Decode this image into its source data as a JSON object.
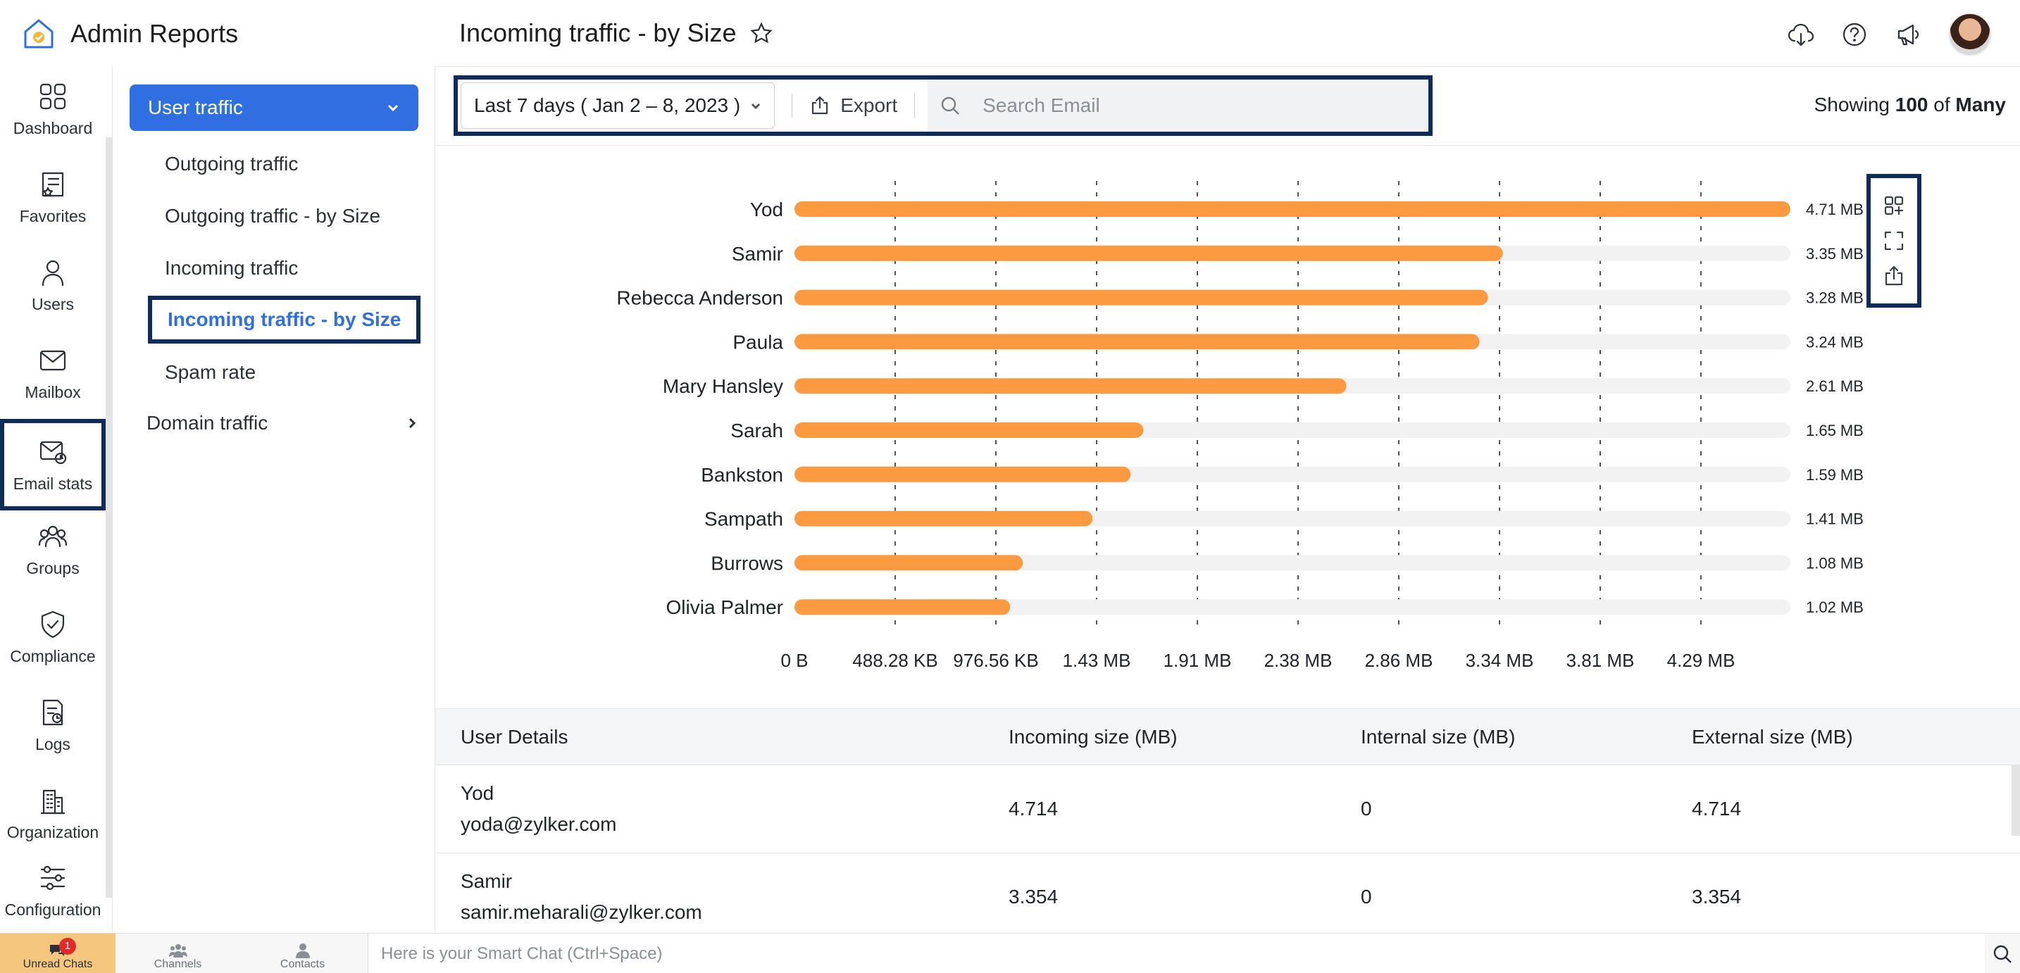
{
  "app": {
    "title": "Admin Reports",
    "logo_icon": "admin-reports-house-icon"
  },
  "rail": {
    "items": [
      {
        "label": "Dashboard",
        "icon": "grid-icon"
      },
      {
        "label": "Favorites",
        "icon": "favorites-list-icon"
      },
      {
        "label": "Users",
        "icon": "user-icon"
      },
      {
        "label": "Mailbox",
        "icon": "envelope-icon"
      },
      {
        "label": "Email stats",
        "icon": "email-stats-icon",
        "active": true
      },
      {
        "label": "Groups",
        "icon": "groups-icon"
      },
      {
        "label": "Compliance",
        "icon": "shield-check-icon"
      },
      {
        "label": "Logs",
        "icon": "logs-icon"
      },
      {
        "label": "Organization",
        "icon": "building-icon"
      },
      {
        "label": "Configuration",
        "icon": "sliders-icon"
      }
    ]
  },
  "subnav": {
    "group_label": "User traffic",
    "items": [
      {
        "label": "Outgoing traffic"
      },
      {
        "label": "Outgoing traffic - by Size"
      },
      {
        "label": "Incoming traffic"
      },
      {
        "label": "Incoming traffic - by Size",
        "active": true
      },
      {
        "label": "Spam rate"
      }
    ],
    "domain_traffic": "Domain traffic"
  },
  "header": {
    "title": "Incoming traffic - by Size",
    "icons": [
      "download-cloud-icon",
      "help-icon",
      "announcement-icon",
      "avatar"
    ]
  },
  "toolbar": {
    "date_range": "Last 7 days ( Jan 2 – 8, 2023 )",
    "export_label": "Export",
    "search_placeholder": "Search Email",
    "showing_prefix": "Showing",
    "showing_count": "100",
    "showing_mid": "of",
    "showing_total": "Many"
  },
  "chart_data": {
    "type": "bar",
    "orientation": "horizontal",
    "categories": [
      "Yod",
      "Samir",
      "Rebecca Anderson",
      "Paula",
      "Mary Hansley",
      "Sarah",
      "Bankston",
      "Sampath",
      "Burrows",
      "Olivia Palmer"
    ],
    "values": [
      4.71,
      3.35,
      3.28,
      3.24,
      2.61,
      1.65,
      1.59,
      1.41,
      1.08,
      1.02
    ],
    "value_labels": [
      "4.71 MB",
      "3.35 MB",
      "3.28 MB",
      "3.24 MB",
      "2.61 MB",
      "1.65 MB",
      "1.59 MB",
      "1.41 MB",
      "1.08 MB",
      "1.02 MB"
    ],
    "xticks": [
      "0 B",
      "488.28 KB",
      "976.56 KB",
      "1.43 MB",
      "1.91 MB",
      "2.38 MB",
      "2.86 MB",
      "3.34 MB",
      "3.81 MB",
      "4.29 MB"
    ],
    "xlim": [
      0,
      4.71
    ],
    "bar_color": "#fb9a40",
    "track_color": "#f2f2f2",
    "grid": "vertical-dashed"
  },
  "chart_tools": [
    "add-widget-icon",
    "fullscreen-icon",
    "share-icon"
  ],
  "table": {
    "headers": [
      "User Details",
      "Incoming size (MB)",
      "Internal size (MB)",
      "External size (MB)"
    ],
    "rows": [
      {
        "name": "Yod",
        "email": "yoda@zylker.com",
        "incoming": "4.714",
        "internal": "0",
        "external": "4.714"
      },
      {
        "name": "Samir",
        "email": "samir.meharali@zylker.com",
        "incoming": "3.354",
        "internal": "0",
        "external": "3.354"
      }
    ]
  },
  "chatbar": {
    "tabs": [
      {
        "label": "Unread Chats",
        "badge": "1",
        "active": true
      },
      {
        "label": "Channels"
      },
      {
        "label": "Contacts"
      }
    ],
    "smart_chat_placeholder": "Here is your Smart Chat (Ctrl+Space)"
  }
}
